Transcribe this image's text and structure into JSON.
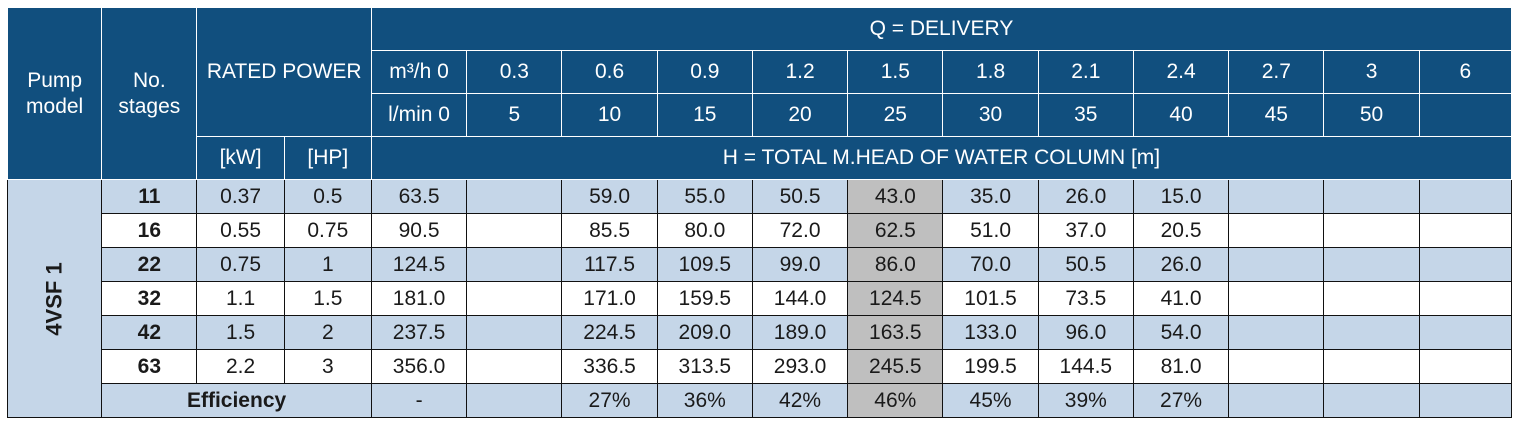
{
  "header": {
    "pump_model": "Pump model",
    "no_stages": "No. stages",
    "rated_power": "RATED POWER",
    "delivery": "Q = DELIVERY",
    "kw": "[kW]",
    "hp": "[HP]",
    "head": "H = TOTAL M.HEAD OF WATER COLUMN [m]",
    "m3h_label": "m³/h 0",
    "lmin_label": "l/min 0",
    "m3h": [
      "0.3",
      "0.6",
      "0.9",
      "1.2",
      "1.5",
      "1.8",
      "2.1",
      "2.4",
      "2.7",
      "3",
      "6"
    ],
    "lmin": [
      "5",
      "10",
      "15",
      "20",
      "25",
      "30",
      "35",
      "40",
      "45",
      "50",
      ""
    ]
  },
  "model_name": "4VSF 1",
  "rows": [
    {
      "stages": "11",
      "kw": "0.37",
      "hp": "0.5",
      "h": [
        "63.5",
        "",
        "59.0",
        "55.0",
        "50.5",
        "43.0",
        "35.0",
        "26.0",
        "15.0",
        "",
        "",
        ""
      ]
    },
    {
      "stages": "16",
      "kw": "0.55",
      "hp": "0.75",
      "h": [
        "90.5",
        "",
        "85.5",
        "80.0",
        "72.0",
        "62.5",
        "51.0",
        "37.0",
        "20.5",
        "",
        "",
        ""
      ]
    },
    {
      "stages": "22",
      "kw": "0.75",
      "hp": "1",
      "h": [
        "124.5",
        "",
        "117.5",
        "109.5",
        "99.0",
        "86.0",
        "70.0",
        "50.5",
        "26.0",
        "",
        "",
        ""
      ]
    },
    {
      "stages": "32",
      "kw": "1.1",
      "hp": "1.5",
      "h": [
        "181.0",
        "",
        "171.0",
        "159.5",
        "144.0",
        "124.5",
        "101.5",
        "73.5",
        "41.0",
        "",
        "",
        ""
      ]
    },
    {
      "stages": "42",
      "kw": "1.5",
      "hp": "2",
      "h": [
        "237.5",
        "",
        "224.5",
        "209.0",
        "189.0",
        "163.5",
        "133.0",
        "96.0",
        "54.0",
        "",
        "",
        ""
      ]
    },
    {
      "stages": "63",
      "kw": "2.2",
      "hp": "3",
      "h": [
        "356.0",
        "",
        "336.5",
        "313.5",
        "293.0",
        "245.5",
        "199.5",
        "144.5",
        "81.0",
        "",
        "",
        ""
      ]
    }
  ],
  "efficiency": {
    "label": "Efficiency",
    "values": [
      "-",
      "",
      "27%",
      "36%",
      "42%",
      "46%",
      "45%",
      "39%",
      "27%",
      "",
      "",
      ""
    ]
  },
  "colors": {
    "header_bg": "#114f7e",
    "row_blue": "#c5d6e8",
    "highlight_column": "#bfbfbf"
  }
}
